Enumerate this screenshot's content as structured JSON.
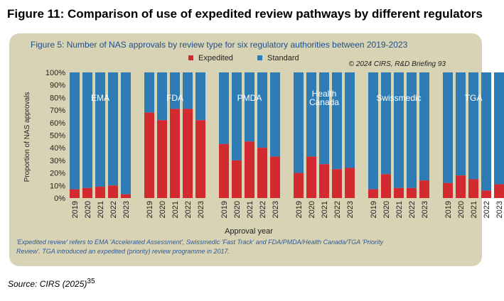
{
  "figure_title": "Figure 11: Comparison of use of expedited review pathways by different regulators",
  "source": {
    "text": "Source: CIRS (2025)",
    "ref": "35"
  },
  "colors": {
    "expedited": "#d22a2e",
    "standard": "#2e7cb5",
    "panel": "#d8d3b4",
    "title_color": "#1f4f8b",
    "note_color": "#2f5a96"
  },
  "chart_data": {
    "type": "bar",
    "stacked": true,
    "title": "Figure 5: Number of NAS approvals by review type for six regulatory authorities between 2019-2023",
    "copyright": "© 2024 CIRS, R&D Briefing 93",
    "ylabel": "Proportion of NAS approvals",
    "xlabel": "Approval year",
    "ylim": [
      0,
      100
    ],
    "yticks": [
      "0%",
      "10%",
      "20%",
      "30%",
      "40%",
      "50%",
      "60%",
      "70%",
      "80%",
      "90%",
      "100%"
    ],
    "legend": {
      "placement": "top-center",
      "items": [
        "Expedited",
        "Standard"
      ]
    },
    "years": [
      "2019",
      "2020",
      "2021",
      "2022",
      "2023"
    ],
    "series": [
      {
        "name": "Expedited",
        "color": "#d22a2e"
      },
      {
        "name": "Standard",
        "color": "#2e7cb5"
      }
    ],
    "groups": [
      {
        "name": "EMA",
        "label_lines": [
          "EMA"
        ],
        "expedited": [
          7,
          8,
          9,
          10,
          3
        ]
      },
      {
        "name": "FDA",
        "label_lines": [
          "FDA"
        ],
        "expedited": [
          68,
          62,
          71,
          71,
          62
        ]
      },
      {
        "name": "PMDA",
        "label_lines": [
          "PMDA"
        ],
        "expedited": [
          43,
          30,
          45,
          40,
          33
        ]
      },
      {
        "name": "Health Canada",
        "label_lines": [
          "Health",
          "Canada"
        ],
        "expedited": [
          20,
          33,
          27,
          23,
          24
        ]
      },
      {
        "name": "Swissmedic",
        "label_lines": [
          "Swissmedic"
        ],
        "expedited": [
          7,
          19,
          8,
          8,
          14
        ]
      },
      {
        "name": "TGA",
        "label_lines": [
          "TGA"
        ],
        "expedited": [
          12,
          18,
          15,
          6,
          11
        ]
      }
    ],
    "note_lines": [
      "'Expedited review' refers to EMA 'Accelerated Assessment', Swissmedic 'Fast Track' and FDA/PMDA/Health Canada/TGA 'Priority",
      "Review'. TGA introduced an expedited (priority) review programme in 2017."
    ]
  }
}
